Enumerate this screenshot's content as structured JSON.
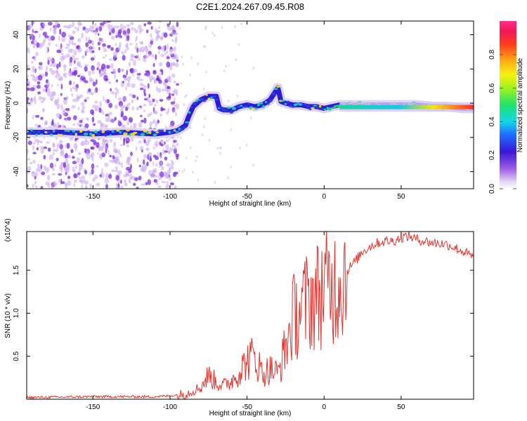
{
  "title": "C2E1.2024.267.09.45.R08",
  "colors": {
    "ridge": "#2a1bd8",
    "snr_line": "#e8302a",
    "axis": "#000000",
    "dots": "#8a2be2"
  },
  "chart_data": [
    {
      "type": "heatmap",
      "title": "C2E1.2024.267.09.45.R08",
      "xlabel": "Height of straight line (km)",
      "ylabel": "Frequency (Hz)",
      "xlim": [
        -193,
        97
      ],
      "ylim": [
        -50,
        48
      ],
      "x_ticks": [
        -150,
        -100,
        -50,
        0,
        50
      ],
      "y_ticks": [
        -40,
        -20,
        0,
        20,
        40
      ],
      "colorbar": {
        "label": "Normalized spectral amplitude",
        "range": [
          0,
          1
        ],
        "ticks": [
          "0.0",
          "0.2",
          "0.4",
          "0.6",
          "0.8"
        ]
      },
      "ridge": {
        "x": [
          -193,
          -170,
          -150,
          -130,
          -110,
          -100,
          -95,
          -90,
          -88,
          -85,
          -80,
          -75,
          -70,
          -68,
          -65,
          -60,
          -55,
          -50,
          -45,
          -40,
          -35,
          -30,
          -28,
          -25,
          -20,
          -15,
          -10,
          -5,
          0,
          5,
          10,
          20,
          30,
          40,
          50,
          60,
          70,
          80,
          90,
          97
        ],
        "y": [
          -17,
          -17,
          -18,
          -17,
          -18,
          -17,
          -16,
          -13,
          -8,
          -2,
          2,
          4,
          4,
          -3,
          -4,
          -4,
          -2,
          -1,
          -2,
          -1,
          2,
          9,
          1,
          0,
          -1,
          -1,
          -2,
          -2,
          -3,
          -2,
          -1,
          -1,
          -1,
          -1,
          -1,
          -1,
          -2,
          -2,
          -3,
          -3
        ]
      }
    },
    {
      "type": "line",
      "xlabel": "Height of straight line (km)",
      "ylabel": "SNR (10 * v/v)",
      "y_scale_note": "(x10^4)",
      "xlim": [
        -193,
        97
      ],
      "ylim": [
        0,
        1.95
      ],
      "x_ticks": [
        -150,
        -100,
        -50,
        0,
        50
      ],
      "y_ticks": [
        "0.5",
        "1.0",
        "1.5"
      ],
      "y_tick_values": [
        0.5,
        1.0,
        1.5
      ],
      "series": [
        {
          "name": "SNR",
          "x": [
            -193,
            -150,
            -110,
            -100,
            -90,
            -80,
            -75,
            -70,
            -65,
            -60,
            -55,
            -50,
            -45,
            -40,
            -35,
            -30,
            -25,
            -20,
            -15,
            -10,
            -5,
            0,
            5,
            10,
            15,
            20,
            25,
            30,
            35,
            40,
            45,
            50,
            55,
            60,
            70,
            80,
            90,
            97
          ],
          "values": [
            0.02,
            0.03,
            0.03,
            0.04,
            0.06,
            0.14,
            0.28,
            0.2,
            0.16,
            0.22,
            0.32,
            0.45,
            0.5,
            0.3,
            0.35,
            0.3,
            0.6,
            0.95,
            1.05,
            1.15,
            1.2,
            1.3,
            1.3,
            1.4,
            1.5,
            1.6,
            1.72,
            1.78,
            1.82,
            1.84,
            1.84,
            1.88,
            1.9,
            1.86,
            1.82,
            1.8,
            1.72,
            1.65
          ]
        }
      ]
    }
  ]
}
